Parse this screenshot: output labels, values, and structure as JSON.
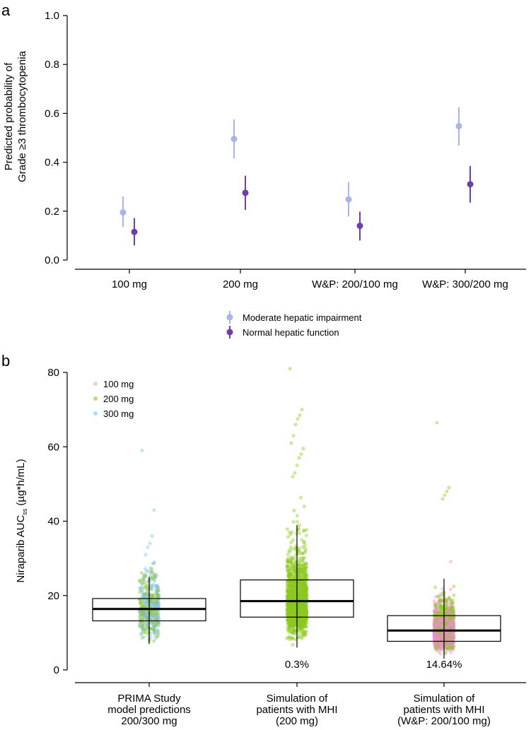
{
  "panels": {
    "a_label": "a",
    "b_label": "b"
  },
  "colors": {
    "moderate": "#aab4e6",
    "normal": "#6e3fa6",
    "dose_100": "#f4a0c8",
    "dose_200": "#8cc81e",
    "dose_300": "#82bee6",
    "pink_dense": "#f08cd2"
  },
  "chart_data": [
    {
      "type": "scatter",
      "title": "",
      "ylabel_line1": "Predicted probability of",
      "ylabel_line2": "Grade ≥3 thrombocytopenia",
      "xlabel": "",
      "ylim": [
        0.0,
        1.0
      ],
      "yticks": [
        "0.0",
        "0.2",
        "0.4",
        "0.6",
        "0.8",
        "1.0"
      ],
      "categories": [
        "100 mg",
        "200 mg",
        "W&P: 200/100 mg",
        "W&P: 300/200 mg"
      ],
      "legend": [
        "Moderate hepatic impairment",
        "Normal hepatic function"
      ],
      "legend_position": "below-center",
      "series": [
        {
          "name": "Moderate hepatic impairment",
          "values": [
            0.195,
            0.495,
            0.248,
            0.548
          ],
          "lower": [
            0.135,
            0.415,
            0.178,
            0.468
          ],
          "upper": [
            0.26,
            0.575,
            0.318,
            0.625
          ]
        },
        {
          "name": "Normal hepatic function",
          "values": [
            0.115,
            0.275,
            0.14,
            0.31
          ],
          "lower": [
            0.06,
            0.205,
            0.08,
            0.235
          ],
          "upper": [
            0.172,
            0.345,
            0.198,
            0.385
          ]
        }
      ]
    },
    {
      "type": "boxplot",
      "title": "",
      "ylabel_main": "Niraparib AUC",
      "ylabel_sub": "ss",
      "ylabel_unit": " (µg*h/mL)",
      "ylim": [
        0,
        80
      ],
      "yticks": [
        "0",
        "20",
        "40",
        "60",
        "80"
      ],
      "legend": [
        "100 mg",
        "200 mg",
        "300 mg"
      ],
      "legend_position": "top-left",
      "categories": [
        [
          "PRIMA Study",
          "model predictions",
          "200/300 mg"
        ],
        [
          "Simulation of",
          "patients with MHI",
          "(200 mg)"
        ],
        [
          "Simulation of",
          "patients with MHI",
          "(W&P: 200/100 mg)"
        ]
      ],
      "boxes": [
        {
          "q1": 13.2,
          "median": 16.4,
          "q3": 19.2,
          "whisker_low": 7.0,
          "whisker_high": 25.0
        },
        {
          "q1": 14.2,
          "median": 18.5,
          "q3": 24.2,
          "whisker_low": 6.0,
          "whisker_high": 39.0
        },
        {
          "q1": 7.7,
          "median": 10.6,
          "q3": 14.6,
          "whisker_low": 3.0,
          "whisker_high": 24.5
        }
      ],
      "annotations": [
        "",
        "0.3%",
        "14.64%"
      ],
      "point_clouds": [
        {
          "n": 420,
          "range": [
            6.5,
            29.5
          ],
          "max": 59,
          "outliers": [
            59.0,
            43.0,
            36.0,
            34.0,
            33.0,
            31.0
          ],
          "doses": [
            "300 mg",
            "200 mg"
          ]
        },
        {
          "n": 1400,
          "range": [
            5.5,
            47
          ],
          "max": 81,
          "outliers": [
            81.0,
            70.0,
            68.5,
            67.5,
            66.0,
            63.0,
            61.0,
            59.5,
            58.0,
            57.0,
            55.0,
            53.0,
            52.0
          ],
          "doses": [
            "200 mg"
          ]
        },
        {
          "n": 1400,
          "range": [
            2.5,
            49.5
          ],
          "max": 66.5,
          "outliers": [
            66.5,
            49.0,
            48.0,
            47.0,
            46.0
          ],
          "doses": [
            "200 mg",
            "100 mg"
          ]
        }
      ]
    }
  ]
}
